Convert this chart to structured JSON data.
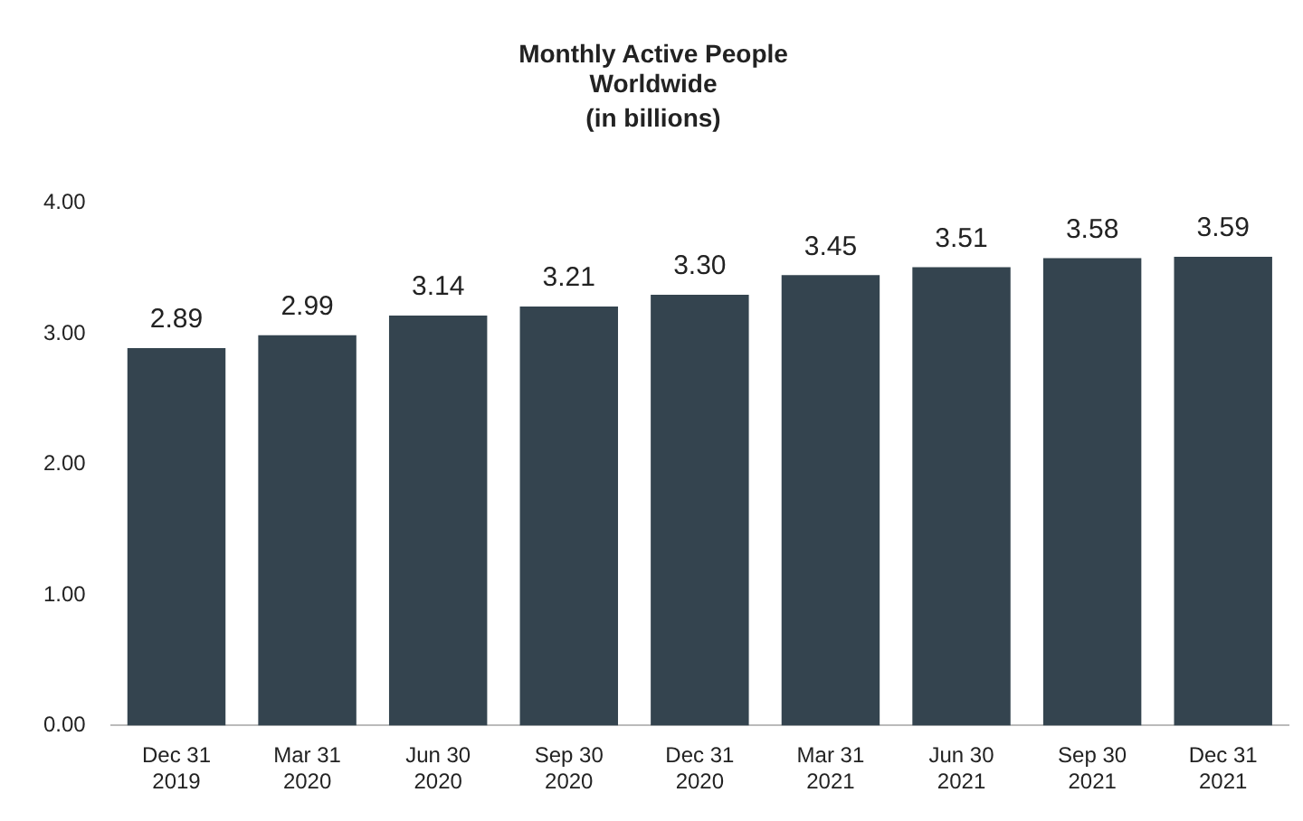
{
  "chart_data": {
    "type": "bar",
    "title": "Monthly Active People\nWorldwide",
    "subtitle": "(in billions)",
    "categories": [
      "Dec 31\n2019",
      "Mar 31\n2020",
      "Jun 30\n2020",
      "Sep 30\n2020",
      "Dec 31\n2020",
      "Mar 31\n2021",
      "Jun 30\n2021",
      "Sep 30\n2021",
      "Dec 31\n2021"
    ],
    "values": [
      2.89,
      2.99,
      3.14,
      3.21,
      3.3,
      3.45,
      3.51,
      3.58,
      3.59
    ],
    "value_labels": [
      "2.89",
      "2.99",
      "3.14",
      "3.21",
      "3.30",
      "3.45",
      "3.51",
      "3.58",
      "3.59"
    ],
    "color": "#34444f",
    "ylim": [
      0,
      4
    ],
    "yticks": [
      {
        "value": 0,
        "label": "0.00"
      },
      {
        "value": 1,
        "label": "1.00"
      },
      {
        "value": 2,
        "label": "2.00"
      },
      {
        "value": 3,
        "label": "3.00"
      },
      {
        "value": 4,
        "label": "4.00"
      }
    ],
    "grid": false,
    "legend": false
  }
}
